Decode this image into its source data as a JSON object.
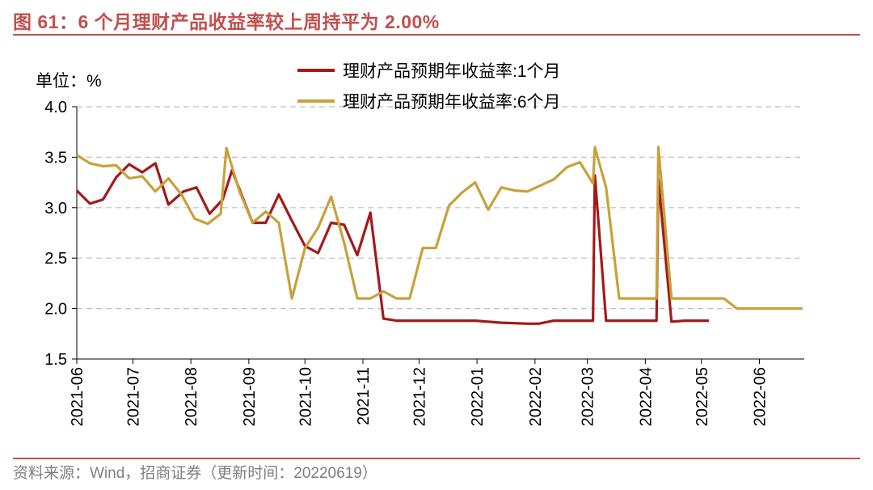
{
  "header": {
    "title": "图 61：6 个月理财产品收益率较上周持平为 2.00%"
  },
  "footer": {
    "source": "资料来源：Wind，招商证券（更新时间：20220619）"
  },
  "colors": {
    "series1": "#a31a1a",
    "series2": "#c8a13a",
    "accent": "#c0504d"
  },
  "chart_data": {
    "type": "line",
    "unit_label": "单位：%",
    "ylim": [
      1.5,
      4.0
    ],
    "yticks": [
      "1.5",
      "2.0",
      "2.5",
      "3.0",
      "3.5",
      "4.0"
    ],
    "xlim": [
      "2021-06-01",
      "2022-06-25"
    ],
    "xticks": [
      "2021-06",
      "2021-07",
      "2021-08",
      "2021-09",
      "2021-10",
      "2021-11",
      "2021-12",
      "2022-01",
      "2022-02",
      "2022-03",
      "2022-04",
      "2022-05",
      "2022-06"
    ],
    "grid": "horizontal-dashed",
    "legend_position": "top",
    "series": [
      {
        "name": "理财产品预期年收益率:1个月",
        "points": [
          [
            "2021-06-01",
            3.17
          ],
          [
            "2021-06-08",
            3.04
          ],
          [
            "2021-06-15",
            3.08
          ],
          [
            "2021-06-22",
            3.3
          ],
          [
            "2021-06-29",
            3.43
          ],
          [
            "2021-07-06",
            3.35
          ],
          [
            "2021-07-13",
            3.44
          ],
          [
            "2021-07-20",
            3.03
          ],
          [
            "2021-07-28",
            3.16
          ],
          [
            "2021-08-04",
            3.2
          ],
          [
            "2021-08-11",
            2.94
          ],
          [
            "2021-08-18",
            3.08
          ],
          [
            "2021-08-23",
            3.37
          ],
          [
            "2021-08-30",
            3.04
          ],
          [
            "2021-09-03",
            2.85
          ],
          [
            "2021-09-10",
            2.85
          ],
          [
            "2021-09-17",
            3.13
          ],
          [
            "2021-09-24",
            2.87
          ],
          [
            "2021-10-01",
            2.62
          ],
          [
            "2021-10-08",
            2.55
          ],
          [
            "2021-10-15",
            2.85
          ],
          [
            "2021-10-22",
            2.83
          ],
          [
            "2021-10-29",
            2.53
          ],
          [
            "2021-11-05",
            2.95
          ],
          [
            "2021-11-12",
            1.9
          ],
          [
            "2021-11-19",
            1.88
          ],
          [
            "2021-11-26",
            1.88
          ],
          [
            "2021-12-10",
            1.88
          ],
          [
            "2021-12-31",
            1.88
          ],
          [
            "2022-01-14",
            1.86
          ],
          [
            "2022-01-28",
            1.85
          ],
          [
            "2022-02-03",
            1.85
          ],
          [
            "2022-02-11",
            1.88
          ],
          [
            "2022-02-18",
            1.88
          ],
          [
            "2022-02-25",
            1.88
          ],
          [
            "2022-03-04",
            1.88
          ],
          [
            "2022-03-04",
            1.88
          ],
          [
            "2022-03-05",
            3.32
          ],
          [
            "2022-03-11",
            1.88
          ],
          [
            "2022-03-18",
            1.88
          ],
          [
            "2022-03-25",
            1.88
          ],
          [
            "2022-04-01",
            1.88
          ],
          [
            "2022-04-07",
            1.88
          ],
          [
            "2022-04-08",
            3.28
          ],
          [
            "2022-04-15",
            1.87
          ],
          [
            "2022-04-22",
            1.88
          ],
          [
            "2022-04-29",
            1.88
          ],
          [
            "2022-05-05",
            1.88
          ]
        ]
      },
      {
        "name": "理财产品预期年收益率:6个月",
        "points": [
          [
            "2021-06-01",
            3.52
          ],
          [
            "2021-06-08",
            3.44
          ],
          [
            "2021-06-15",
            3.41
          ],
          [
            "2021-06-22",
            3.42
          ],
          [
            "2021-06-29",
            3.29
          ],
          [
            "2021-07-06",
            3.31
          ],
          [
            "2021-07-13",
            3.16
          ],
          [
            "2021-07-20",
            3.29
          ],
          [
            "2021-07-27",
            3.13
          ],
          [
            "2021-08-03",
            2.89
          ],
          [
            "2021-08-10",
            2.84
          ],
          [
            "2021-08-17",
            2.94
          ],
          [
            "2021-08-20",
            3.59
          ],
          [
            "2021-08-27",
            3.16
          ],
          [
            "2021-09-03",
            2.85
          ],
          [
            "2021-09-10",
            2.96
          ],
          [
            "2021-09-17",
            2.85
          ],
          [
            "2021-09-24",
            2.1
          ],
          [
            "2021-10-01",
            2.6
          ],
          [
            "2021-10-08",
            2.8
          ],
          [
            "2021-10-15",
            3.11
          ],
          [
            "2021-10-22",
            2.65
          ],
          [
            "2021-10-29",
            2.1
          ],
          [
            "2021-11-05",
            2.1
          ],
          [
            "2021-11-12",
            2.17
          ],
          [
            "2021-11-19",
            2.1
          ],
          [
            "2021-11-26",
            2.1
          ],
          [
            "2021-12-03",
            2.6
          ],
          [
            "2021-12-10",
            2.6
          ],
          [
            "2021-12-17",
            3.02
          ],
          [
            "2021-12-24",
            3.15
          ],
          [
            "2021-12-31",
            3.25
          ],
          [
            "2022-01-07",
            2.98
          ],
          [
            "2022-01-14",
            3.2
          ],
          [
            "2022-01-21",
            3.17
          ],
          [
            "2022-01-28",
            3.16
          ],
          [
            "2022-02-04",
            3.22
          ],
          [
            "2022-02-11",
            3.28
          ],
          [
            "2022-02-18",
            3.4
          ],
          [
            "2022-02-25",
            3.45
          ],
          [
            "2022-03-04",
            3.24
          ],
          [
            "2022-03-05",
            3.6
          ],
          [
            "2022-03-11",
            3.2
          ],
          [
            "2022-03-18",
            2.1
          ],
          [
            "2022-03-25",
            2.1
          ],
          [
            "2022-04-01",
            2.1
          ],
          [
            "2022-04-07",
            2.1
          ],
          [
            "2022-04-08",
            3.6
          ],
          [
            "2022-04-15",
            2.1
          ],
          [
            "2022-04-22",
            2.1
          ],
          [
            "2022-04-29",
            2.1
          ],
          [
            "2022-05-06",
            2.1
          ],
          [
            "2022-05-13",
            2.1
          ],
          [
            "2022-05-20",
            2.0
          ],
          [
            "2022-05-27",
            2.0
          ],
          [
            "2022-06-03",
            2.0
          ],
          [
            "2022-06-10",
            2.0
          ],
          [
            "2022-06-17",
            2.0
          ],
          [
            "2022-06-24",
            2.0
          ]
        ]
      }
    ]
  }
}
